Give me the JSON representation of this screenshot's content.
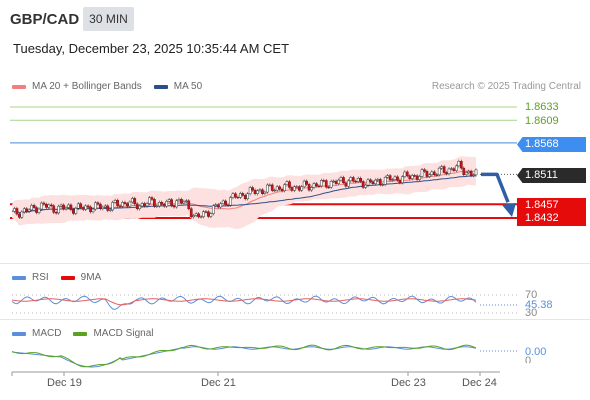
{
  "header": {
    "symbol": "GBP/CAD",
    "timeframe": "30 MIN",
    "datetime": "Tuesday, December 23, 2025 10:35:44 AM CET"
  },
  "legend": {
    "ma20_label": "MA 20 + Bollinger Bands",
    "ma20_color": "#f08080",
    "ma50_label": "MA 50",
    "ma50_color": "#2b4f8a",
    "copyright": "Research © 2025 Trading Central"
  },
  "price_levels": {
    "resistance_2": "1.8633",
    "resistance_1": "1.8609",
    "pivot": "1.8568",
    "last": "1.8511",
    "support_1": "1.8457",
    "support_2": "1.8432",
    "colors": {
      "resistance": "#5aa31f",
      "pivot": "#3d8ef0",
      "last": "#2a2a2a",
      "support": "#e60b0b"
    }
  },
  "rsi": {
    "label": "RSI",
    "label_color": "#5b8fd9",
    "ma_label": "9MA",
    "ma_color": "#e60b0b",
    "level_high": "70",
    "value": "45.38",
    "level_low": "30"
  },
  "macd": {
    "label": "MACD",
    "label_color": "#5b8fd9",
    "signal_label": "MACD Signal",
    "signal_color": "#5aa31f",
    "value": "0.00",
    "zero": "0"
  },
  "x_axis": {
    "labels": [
      "Dec 19",
      "Dec 21",
      "Dec 23",
      "Dec 24"
    ]
  },
  "chart_data": {
    "type": "candlestick",
    "title": "GBP/CAD",
    "timeframe": "30 MIN",
    "x_labels": [
      "Dec 19",
      "Dec 21",
      "Dec 23",
      "Dec 24"
    ],
    "close": [
      1.844,
      1.8442,
      1.8445,
      1.8447,
      1.8452,
      1.8455,
      1.845,
      1.8449,
      1.845,
      1.8451,
      1.8449,
      1.845,
      1.8452,
      1.8451,
      1.8453,
      1.8451,
      1.8455,
      1.8458,
      1.846,
      1.8457,
      1.8455,
      1.8459,
      1.8461,
      1.8458,
      1.8456,
      1.8459,
      1.8463,
      1.846,
      1.8445,
      1.8432,
      1.8438,
      1.8445,
      1.8452,
      1.8458,
      1.8465,
      1.847,
      1.8474,
      1.8477,
      1.848,
      1.8482,
      1.8484,
      1.8486,
      1.8487,
      1.8488,
      1.8489,
      1.8487,
      1.849,
      1.8491,
      1.8492,
      1.8494,
      1.8496,
      1.8497,
      1.8499,
      1.85,
      1.8498,
      1.8497,
      1.8494,
      1.8498,
      1.85,
      1.8502,
      1.8503,
      1.8505,
      1.8507,
      1.8508,
      1.851,
      1.8512,
      1.8514,
      1.8516,
      1.8518,
      1.8522,
      1.8525,
      1.8517,
      1.8511
    ],
    "pivot_levels": {
      "resistance_2": 1.8633,
      "resistance_1": 1.8609,
      "pivot": 1.8568,
      "last": 1.8511,
      "support_1": 1.8457,
      "support_2": 1.8432
    },
    "y_range": [
      1.842,
      1.865
    ]
  }
}
